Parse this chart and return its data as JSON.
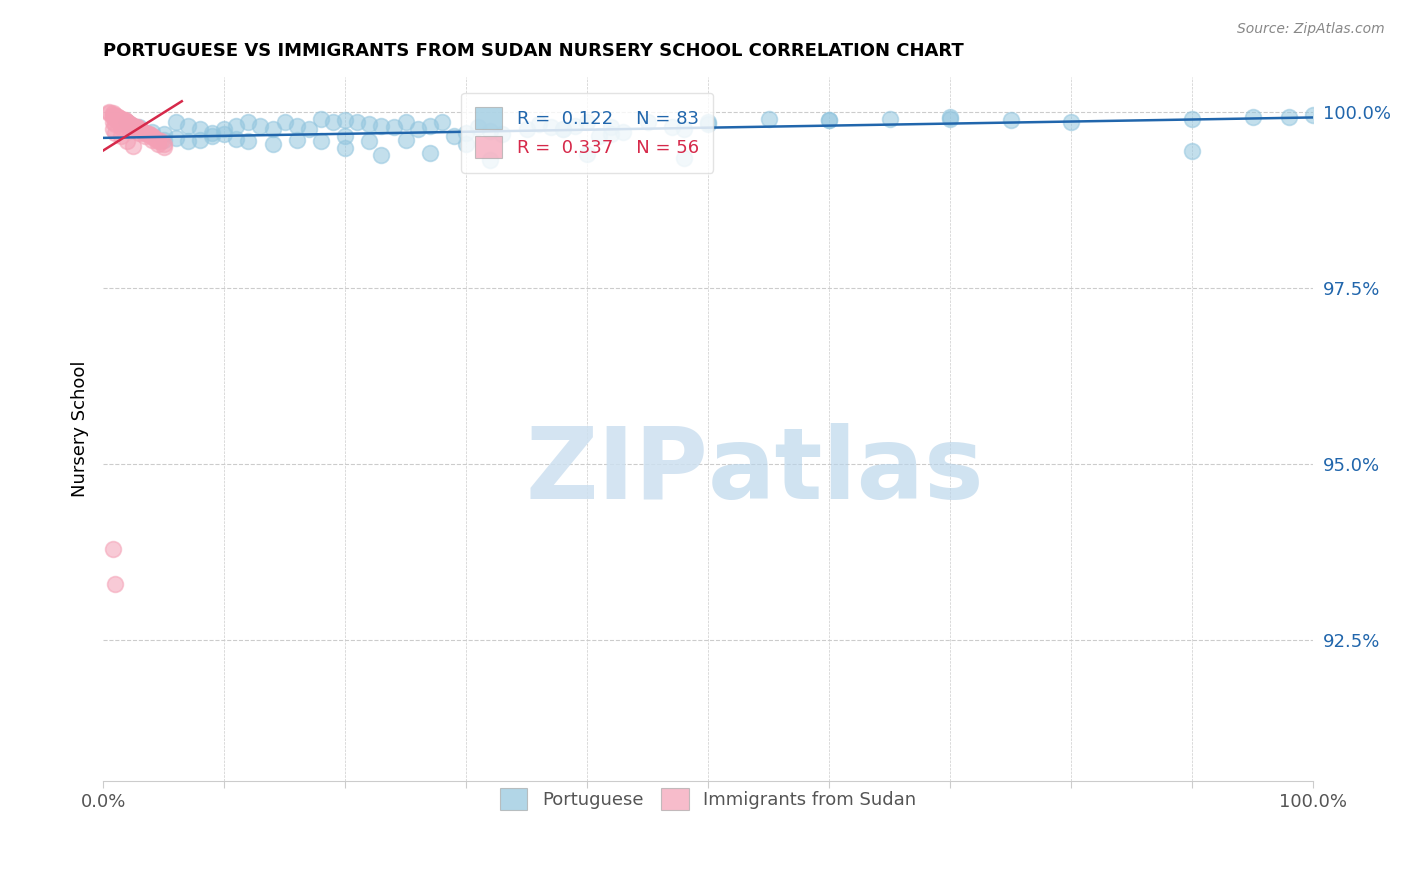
{
  "title": "PORTUGUESE VS IMMIGRANTS FROM SUDAN NURSERY SCHOOL CORRELATION CHART",
  "source": "Source: ZipAtlas.com",
  "ylabel": "Nursery School",
  "ytick_labels": [
    "100.0%",
    "97.5%",
    "95.0%",
    "92.5%"
  ],
  "ytick_values": [
    1.0,
    0.975,
    0.95,
    0.925
  ],
  "xlim": [
    0.0,
    1.0
  ],
  "ylim": [
    0.905,
    1.005
  ],
  "legend_blue_r": "0.122",
  "legend_blue_n": "83",
  "legend_pink_r": "0.337",
  "legend_pink_n": "56",
  "blue_scatter_x": [
    0.02,
    0.025,
    0.03,
    0.04,
    0.05,
    0.06,
    0.07,
    0.08,
    0.09,
    0.1,
    0.11,
    0.12,
    0.13,
    0.14,
    0.15,
    0.16,
    0.17,
    0.18,
    0.19,
    0.2,
    0.21,
    0.22,
    0.23,
    0.24,
    0.25,
    0.26,
    0.27,
    0.28,
    0.29,
    0.3,
    0.31,
    0.32,
    0.33,
    0.35,
    0.36,
    0.37,
    0.38,
    0.39,
    0.4,
    0.41,
    0.42,
    0.43,
    0.45,
    0.47,
    0.48,
    0.5,
    0.55,
    0.6,
    0.65,
    0.7,
    0.75,
    0.8,
    0.9,
    0.95,
    0.98,
    1.0,
    0.05,
    0.06,
    0.07,
    0.08,
    0.09,
    0.1,
    0.11,
    0.12,
    0.14,
    0.16,
    0.2,
    0.22,
    0.25,
    0.3,
    0.38,
    0.42,
    0.5,
    0.6,
    0.7,
    0.9,
    0.18,
    0.2,
    0.23,
    0.27,
    0.32,
    0.4,
    0.48
  ],
  "blue_scatter_y": [
    0.9985,
    0.998,
    0.9978,
    0.9972,
    0.9968,
    0.9963,
    0.9958,
    0.996,
    0.9965,
    0.9975,
    0.998,
    0.9985,
    0.998,
    0.9975,
    0.9985,
    0.998,
    0.9975,
    0.999,
    0.9985,
    0.9988,
    0.9985,
    0.9982,
    0.998,
    0.9978,
    0.9985,
    0.9975,
    0.998,
    0.9985,
    0.9965,
    0.997,
    0.9978,
    0.9973,
    0.9968,
    0.9975,
    0.9982,
    0.9978,
    0.9975,
    0.998,
    0.9985,
    0.9965,
    0.9968,
    0.9972,
    0.9985,
    0.9978,
    0.9975,
    0.9982,
    0.999,
    0.9988,
    0.999,
    0.9992,
    0.9988,
    0.9985,
    0.999,
    0.9992,
    0.9992,
    0.9995,
    0.996,
    0.9985,
    0.998,
    0.9975,
    0.997,
    0.9968,
    0.9962,
    0.9958,
    0.9955,
    0.996,
    0.9965,
    0.9958,
    0.996,
    0.9955,
    0.9975,
    0.9978,
    0.9985,
    0.9988,
    0.999,
    0.9945,
    0.9958,
    0.9948,
    0.9938,
    0.9942,
    0.9932,
    0.994,
    0.9935
  ],
  "pink_scatter_x": [
    0.005,
    0.008,
    0.01,
    0.012,
    0.015,
    0.018,
    0.02,
    0.022,
    0.025,
    0.028,
    0.03,
    0.032,
    0.035,
    0.038,
    0.04,
    0.042,
    0.045,
    0.048,
    0.05,
    0.005,
    0.008,
    0.012,
    0.015,
    0.018,
    0.02,
    0.022,
    0.025,
    0.028,
    0.03,
    0.032,
    0.035,
    0.038,
    0.04,
    0.045,
    0.008,
    0.01,
    0.012,
    0.015,
    0.018,
    0.02,
    0.025,
    0.03,
    0.035,
    0.04,
    0.045,
    0.05,
    0.008,
    0.01,
    0.015,
    0.008,
    0.01,
    0.015,
    0.02,
    0.025,
    0.008,
    0.01
  ],
  "pink_scatter_y": [
    1.0,
    0.9998,
    0.9995,
    0.9993,
    0.999,
    0.9988,
    0.9985,
    0.9982,
    0.998,
    0.9978,
    0.9975,
    0.9973,
    0.997,
    0.9968,
    0.9965,
    0.9963,
    0.996,
    0.9958,
    0.9955,
    0.9998,
    0.9995,
    0.9992,
    0.999,
    0.9988,
    0.9985,
    0.9982,
    0.998,
    0.9978,
    0.9975,
    0.9973,
    0.997,
    0.9968,
    0.9965,
    0.9958,
    0.9992,
    0.999,
    0.9988,
    0.9985,
    0.9982,
    0.998,
    0.9975,
    0.997,
    0.9965,
    0.996,
    0.9955,
    0.995,
    0.9985,
    0.9982,
    0.9978,
    0.9975,
    0.997,
    0.9965,
    0.9958,
    0.9952,
    0.938,
    0.933
  ],
  "blue_line_x": [
    0.0,
    1.0
  ],
  "blue_line_y": [
    0.9963,
    0.9992
  ],
  "pink_line_x": [
    0.0,
    0.065
  ],
  "pink_line_y": [
    0.9945,
    1.0015
  ],
  "blue_color": "#92c5de",
  "pink_color": "#f4a0b5",
  "blue_line_color": "#2166ac",
  "pink_line_color": "#d6294a",
  "watermark_zip": "ZIP",
  "watermark_atlas": "atlas",
  "background_color": "#ffffff",
  "grid_color": "#cccccc"
}
